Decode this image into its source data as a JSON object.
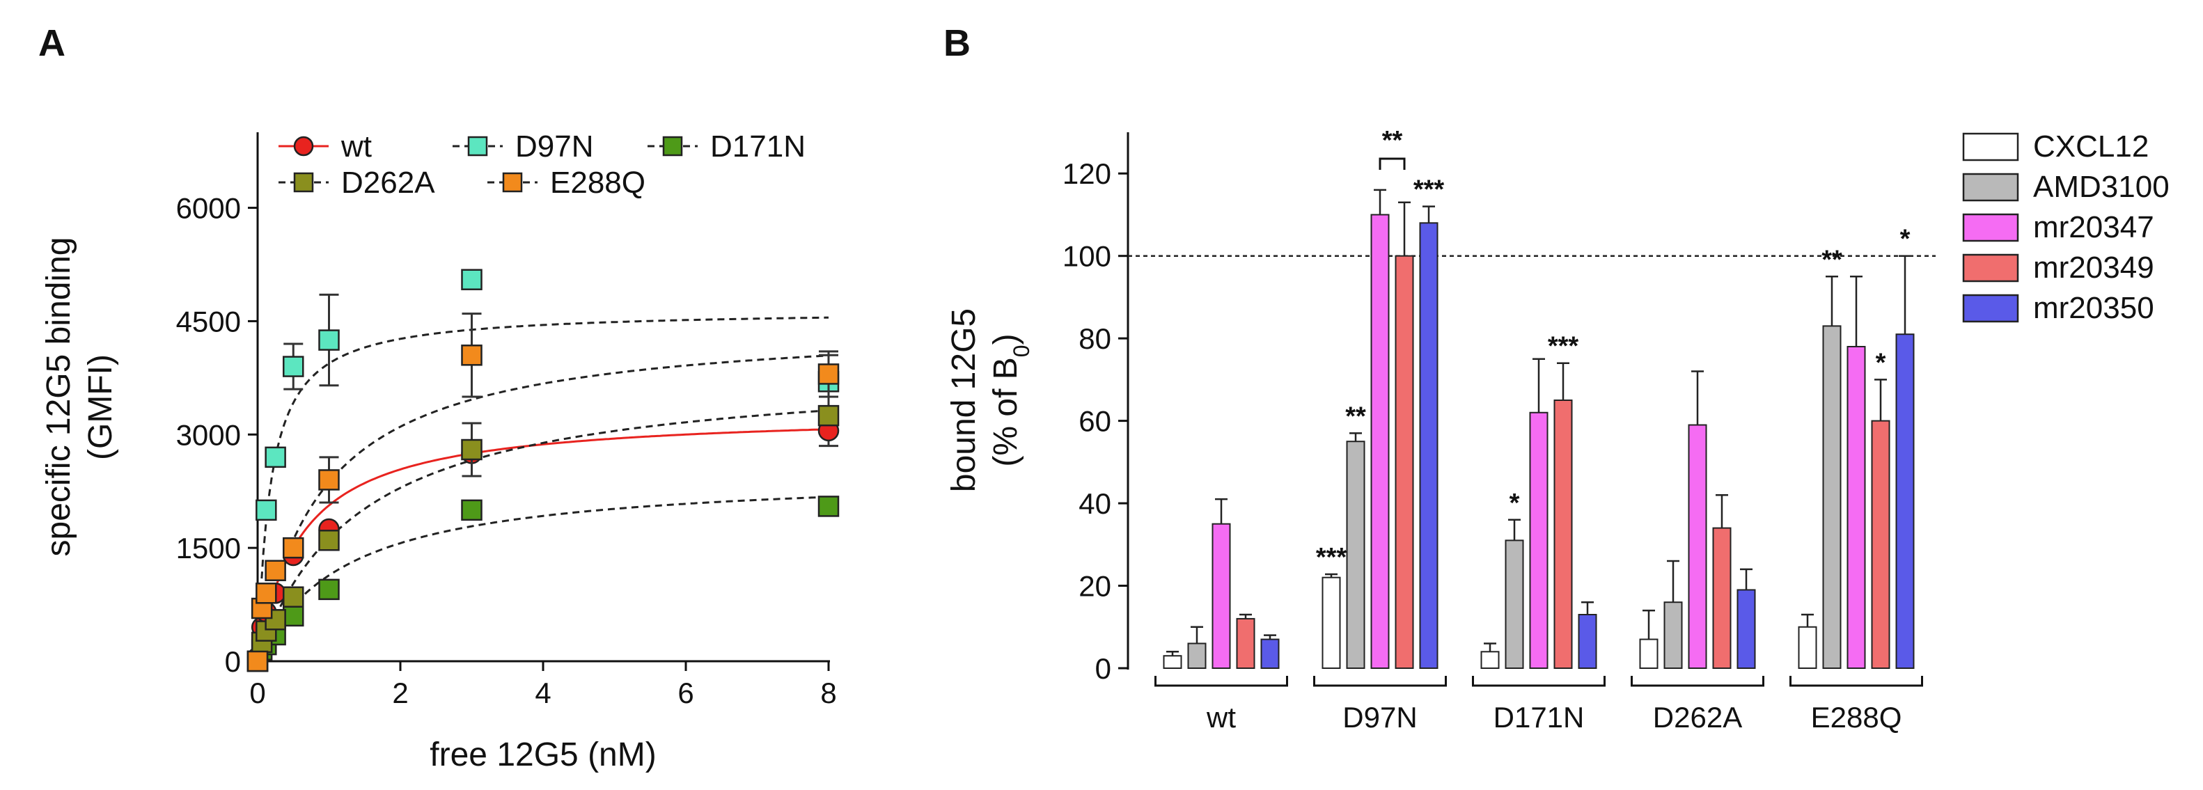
{
  "chart_data": [
    {
      "panel": "A",
      "type": "scatter",
      "xlabel": "free 12G5 (nM)",
      "ylabel": "specific 12G5 binding",
      "ylabel_unit": "(GMFI)",
      "xlim": [
        0,
        8
      ],
      "ylim": [
        0,
        7000
      ],
      "xticks": [
        0,
        2,
        4,
        6,
        8
      ],
      "yticks": [
        0,
        1500,
        3000,
        4500,
        6000
      ],
      "legend_position": "top",
      "series": [
        {
          "name": "wt",
          "color": "#e8231f",
          "marker": "circle",
          "fit": "solid",
          "x": [
            0,
            0.06,
            0.12,
            0.25,
            0.5,
            1,
            3,
            8
          ],
          "y": [
            50,
            450,
            650,
            900,
            1400,
            1750,
            2750,
            3050
          ],
          "err": [
            0,
            0,
            0,
            0,
            0,
            0,
            0,
            200
          ],
          "bmax": 3300,
          "kd": 0.6
        },
        {
          "name": "D97N",
          "color": "#5ce6c0",
          "marker": "square",
          "fit": "dashed",
          "x": [
            0,
            0.12,
            0.25,
            0.5,
            1,
            3,
            8
          ],
          "y": [
            0,
            2000,
            2700,
            3900,
            4250,
            5050,
            3700
          ],
          "err": [
            0,
            0,
            0,
            300,
            600,
            0,
            350
          ],
          "bmax": 4650,
          "kd": 0.18
        },
        {
          "name": "D171N",
          "color": "#4e9a18",
          "marker": "square",
          "fit": "dashed",
          "x": [
            0,
            0.06,
            0.12,
            0.25,
            0.5,
            1,
            3,
            8
          ],
          "y": [
            0,
            150,
            220,
            350,
            600,
            950,
            2000,
            2050
          ],
          "err": [
            0,
            0,
            0,
            0,
            0,
            0,
            0,
            0
          ],
          "bmax": 2500,
          "kd": 1.2
        },
        {
          "name": "D262A",
          "color": "#8a8f1e",
          "marker": "square",
          "fit": "dashed",
          "x": [
            0,
            0.06,
            0.12,
            0.25,
            0.5,
            1,
            3,
            8
          ],
          "y": [
            0,
            250,
            400,
            550,
            850,
            1600,
            2800,
            3250
          ],
          "err": [
            0,
            0,
            0,
            0,
            0,
            0,
            350,
            0
          ],
          "bmax": 3900,
          "kd": 1.4
        },
        {
          "name": "E288Q",
          "color": "#f28a1c",
          "marker": "square",
          "fit": "dashed",
          "x": [
            0,
            0.06,
            0.12,
            0.25,
            0.5,
            1,
            3,
            8
          ],
          "y": [
            0,
            700,
            900,
            1200,
            1500,
            2400,
            4050,
            3800
          ],
          "err": [
            0,
            0,
            0,
            0,
            0,
            300,
            550,
            300
          ],
          "bmax": 4500,
          "kd": 0.9
        }
      ],
      "legend": {
        "row1": [
          "wt",
          "D97N",
          "D171N"
        ],
        "row2": [
          "D262A",
          "E288Q"
        ]
      }
    },
    {
      "panel": "B",
      "type": "bar",
      "ylabel": "bound 12G5",
      "ylabel_unit_prefix": "(% of B",
      "ylabel_unit_sub": "0",
      "ylabel_unit_suffix": ")",
      "ylim": [
        0,
        130
      ],
      "yticks": [
        0,
        20,
        40,
        60,
        80,
        100,
        120
      ],
      "reference_line": 100,
      "categories": [
        "wt",
        "D97N",
        "D171N",
        "D262A",
        "E288Q"
      ],
      "series": [
        {
          "name": "CXCL12",
          "color": "#ffffff",
          "values": [
            3,
            22,
            4,
            7,
            10
          ],
          "err": [
            1,
            0.8,
            2,
            7,
            3
          ],
          "stars": [
            "",
            "***",
            "",
            "",
            ""
          ]
        },
        {
          "name": "AMD3100",
          "color": "#b9b9b9",
          "values": [
            6,
            55,
            31,
            16,
            83
          ],
          "err": [
            4,
            2,
            5,
            10,
            12
          ],
          "stars": [
            "",
            "**",
            "*",
            "",
            "**"
          ]
        },
        {
          "name": "mr20347",
          "color": "#f56cf3",
          "values": [
            35,
            110,
            62,
            59,
            78
          ],
          "err": [
            6,
            6,
            13,
            13,
            17
          ],
          "stars": [
            "",
            "",
            "",
            "",
            ""
          ]
        },
        {
          "name": "mr20349",
          "color": "#f06e6e",
          "values": [
            12,
            100,
            65,
            34,
            60
          ],
          "err": [
            1,
            13,
            9,
            8,
            10
          ],
          "stars": [
            "",
            "",
            "***",
            "",
            "*"
          ]
        },
        {
          "name": "mr20350",
          "color": "#5a5ae8",
          "values": [
            7,
            108,
            13,
            19,
            81
          ],
          "err": [
            1,
            4,
            3,
            5,
            19
          ],
          "stars": [
            "",
            "***",
            "",
            "",
            "*"
          ]
        }
      ],
      "bracket": {
        "category": "D97N",
        "between": [
          "mr20347",
          "mr20349"
        ],
        "label": "**"
      }
    }
  ],
  "panels": {
    "a_label": "A",
    "b_label": "B"
  }
}
